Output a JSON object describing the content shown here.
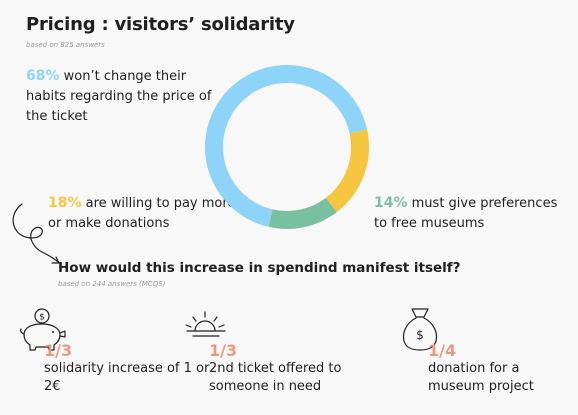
{
  "title": "Pricing : visitors’ solidarity",
  "subtitle": "based on 825 answers",
  "stats": {
    "s68": {
      "pct": "68%",
      "text": " won’t change their habits regarding the price of the ticket",
      "color": "#8ed4f8"
    },
    "s18": {
      "pct": "18%",
      "text": " are willing to pay more or make donations",
      "color": "#f6c640"
    },
    "s14": {
      "pct": "14%",
      "text": " must give preferences to free museums",
      "color": "#79c0a0"
    }
  },
  "question": {
    "title": "How would this increase in spendind manifest itself?",
    "subtitle": "based on 244 answers (MCQS)"
  },
  "items": [
    {
      "fraction": "1/3",
      "label": "solidarity increase of 1 or 2€",
      "icon": "piggy-bank-icon"
    },
    {
      "fraction": "1/3",
      "label": "2nd ticket offered to someone in need",
      "icon": "ticket-icon"
    },
    {
      "fraction": "1/4",
      "label": "donation for a museum project",
      "icon": "money-bag-icon"
    }
  ],
  "accent": "#e79c80",
  "chart_data": {
    "type": "pie",
    "donut": true,
    "categories": [
      "won’t change their habits regarding the price of the ticket",
      "are willing to pay more or make donations",
      "must give preferences to free museums"
    ],
    "values": [
      68,
      18,
      14
    ],
    "colors": [
      "#8ed4f8",
      "#f6c640",
      "#79c0a0"
    ]
  }
}
